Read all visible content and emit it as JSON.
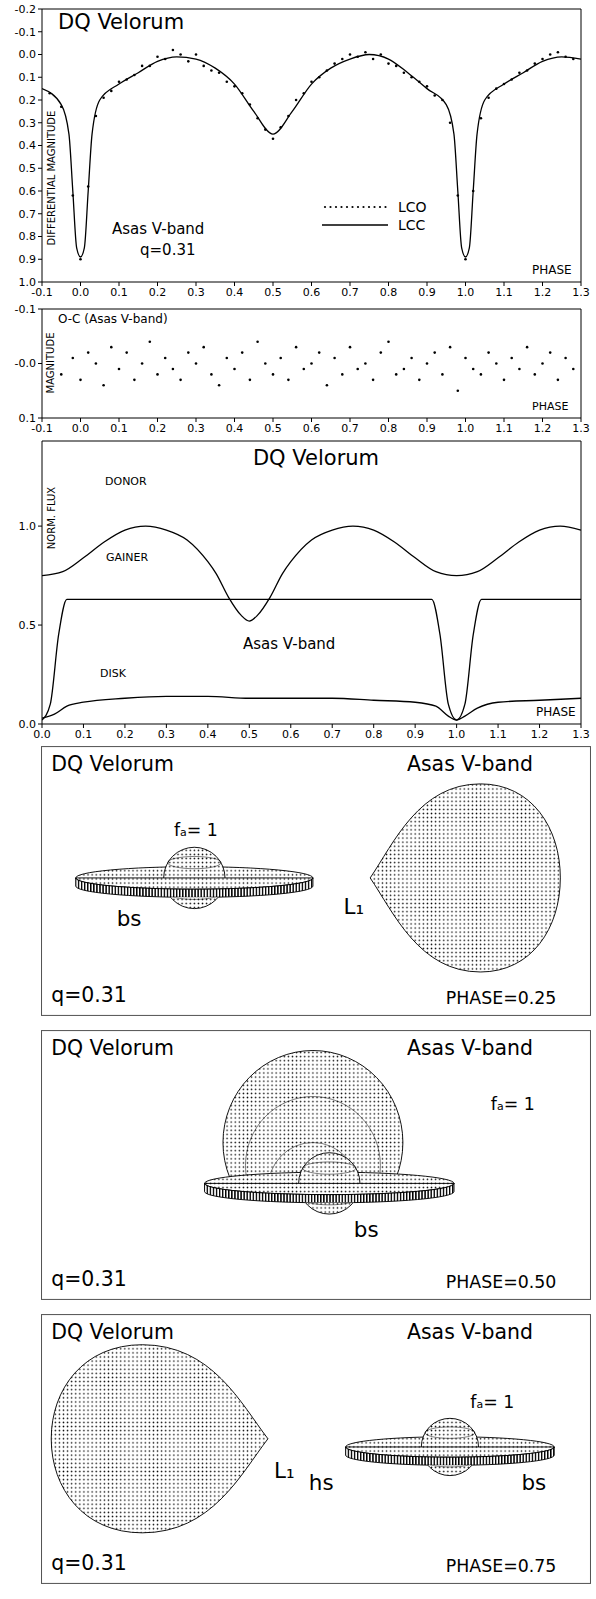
{
  "chart_data": [
    {
      "type": "line",
      "title": "DQ Velorum",
      "annotations": [
        "Asas V-band",
        "q=0.31"
      ],
      "y_label": "DIFFERENTIAL MAGNITUDE",
      "x_label": "PHASE",
      "xlim": [
        -0.1,
        1.3
      ],
      "xticks": [
        -0.1,
        {
          "value": 0,
          "label": "0.0"
        },
        0.1,
        0.2,
        0.3,
        0.4,
        0.5,
        0.6,
        0.7,
        0.8,
        0.9,
        {
          "value": 1,
          "label": "1.0"
        },
        1.1,
        1.2,
        1.3
      ],
      "ylim": [
        1,
        -0.2
      ],
      "yticks": [
        -0.2,
        -0.1,
        {
          "value": 0,
          "label": "0.0"
        },
        0.1,
        0.2,
        0.3,
        0.4,
        0.5,
        0.6,
        0.7,
        0.8,
        0.9,
        {
          "value": 1,
          "label": "1.0"
        }
      ],
      "legend": "bottom",
      "series": [
        {
          "name": "LCO",
          "type": "scatter",
          "marker": "dot",
          "color": "#000000",
          "x": [
            -0.08,
            -0.05,
            -0.02,
            0,
            0.02,
            0.04,
            0.06,
            0.08,
            0.1,
            0.12,
            0.14,
            0.16,
            0.18,
            0.2,
            0.22,
            0.24,
            0.26,
            0.28,
            0.3,
            0.32,
            0.34,
            0.36,
            0.38,
            0.4,
            0.42,
            0.44,
            0.46,
            0.48,
            0.5,
            0.52,
            0.54,
            0.56,
            0.58,
            0.6,
            0.62,
            0.64,
            0.66,
            0.68,
            0.7,
            0.72,
            0.74,
            0.76,
            0.78,
            0.8,
            0.82,
            0.84,
            0.86,
            0.88,
            0.9,
            0.92,
            0.94,
            0.96,
            0.98,
            1,
            1.02,
            1.04,
            1.06,
            1.08,
            1.1,
            1.12,
            1.14,
            1.16,
            1.18,
            1.2,
            1.22,
            1.24,
            1.26,
            1.28
          ],
          "values": [
            0.17,
            0.23,
            0.62,
            0.9,
            0.58,
            0.27,
            0.19,
            0.16,
            0.12,
            0.11,
            0.09,
            0.05,
            0.05,
            0.01,
            0.02,
            -0.02,
            0.0,
            0.03,
            0.0,
            0.05,
            0.07,
            0.08,
            0.12,
            0.14,
            0.17,
            0.22,
            0.28,
            0.33,
            0.37,
            0.32,
            0.27,
            0.2,
            0.17,
            0.12,
            0.1,
            0.07,
            0.04,
            0.02,
            0.0,
            0.01,
            -0.01,
            0.02,
            0.0,
            0.04,
            0.05,
            0.08,
            0.1,
            0.12,
            0.14,
            0.18,
            0.2,
            0.3,
            0.62,
            0.9,
            0.6,
            0.28,
            0.19,
            0.15,
            0.13,
            0.11,
            0.08,
            0.07,
            0.04,
            0.02,
            0.0,
            -0.01,
            0.01,
            0.02
          ]
        },
        {
          "name": "LCC",
          "type": "line",
          "line_style": "solid",
          "color": "#000000",
          "x": [
            -0.1,
            -0.05,
            -0.03,
            -0.02,
            -0.01,
            0,
            0.01,
            0.02,
            0.03,
            0.05,
            0.1,
            0.15,
            0.2,
            0.25,
            0.3,
            0.35,
            0.4,
            0.45,
            0.5,
            0.55,
            0.6,
            0.65,
            0.7,
            0.75,
            0.8,
            0.85,
            0.9,
            0.95,
            0.97,
            0.98,
            0.99,
            1,
            1.01,
            1.02,
            1.03,
            1.05,
            1.1,
            1.15,
            1.2,
            1.25,
            1.3
          ],
          "values": [
            0.15,
            0.22,
            0.35,
            0.6,
            0.85,
            0.89,
            0.85,
            0.6,
            0.35,
            0.2,
            0.13,
            0.08,
            0.03,
            0.01,
            0.02,
            0.06,
            0.13,
            0.25,
            0.35,
            0.25,
            0.13,
            0.06,
            0.02,
            0.0,
            0.02,
            0.08,
            0.15,
            0.22,
            0.35,
            0.6,
            0.85,
            0.89,
            0.85,
            0.6,
            0.35,
            0.2,
            0.13,
            0.08,
            0.03,
            0.01,
            0.02
          ]
        }
      ]
    },
    {
      "type": "scatter",
      "title": "O-C (Asas V-band)",
      "y_label": "MAGNITUDE",
      "x_label": "PHASE",
      "xlim": [
        -0.1,
        1.3
      ],
      "xticks": [
        -0.1,
        {
          "value": 0,
          "label": "0.0"
        },
        0.1,
        0.2,
        0.3,
        0.4,
        0.5,
        0.6,
        0.7,
        0.8,
        0.9,
        {
          "value": 1,
          "label": "1.0"
        },
        1.1,
        1.2,
        1.3
      ],
      "ylim": [
        0.1,
        -0.1
      ],
      "yticks": [
        -0.1,
        {
          "value": 0,
          "label": "-0.0"
        },
        0.1
      ],
      "series": [
        {
          "type": "scatter",
          "marker": "dot",
          "color": "#000000",
          "x": [
            -0.05,
            -0.02,
            0,
            0.02,
            0.04,
            0.06,
            0.08,
            0.1,
            0.12,
            0.14,
            0.16,
            0.18,
            0.2,
            0.22,
            0.24,
            0.26,
            0.28,
            0.3,
            0.32,
            0.34,
            0.36,
            0.38,
            0.4,
            0.42,
            0.44,
            0.46,
            0.48,
            0.5,
            0.52,
            0.54,
            0.56,
            0.58,
            0.6,
            0.62,
            0.64,
            0.66,
            0.68,
            0.7,
            0.72,
            0.74,
            0.76,
            0.78,
            0.8,
            0.82,
            0.84,
            0.86,
            0.88,
            0.9,
            0.92,
            0.94,
            0.96,
            0.98,
            1,
            1.02,
            1.04,
            1.06,
            1.08,
            1.1,
            1.12,
            1.14,
            1.16,
            1.18,
            1.2,
            1.22,
            1.24,
            1.26,
            1.28
          ],
          "values": [
            0.02,
            -0.01,
            0.03,
            -0.02,
            0.0,
            0.04,
            -0.03,
            0.01,
            -0.02,
            0.03,
            0.0,
            -0.04,
            0.02,
            -0.01,
            0.01,
            0.03,
            -0.02,
            0.0,
            -0.03,
            0.02,
            0.04,
            -0.01,
            0.01,
            -0.02,
            0.03,
            -0.04,
            0.0,
            0.02,
            -0.01,
            0.03,
            -0.03,
            0.01,
            0.0,
            -0.02,
            0.04,
            -0.01,
            0.02,
            -0.03,
            0.01,
            0.0,
            0.03,
            -0.02,
            -0.04,
            0.02,
            0.01,
            -0.01,
            0.03,
            0.0,
            -0.02,
            0.02,
            -0.03,
            0.05,
            -0.01,
            0.01,
            0.02,
            -0.02,
            0.0,
            0.03,
            -0.01,
            0.01,
            -0.03,
            0.02,
            0.0,
            -0.02,
            0.03,
            -0.01,
            0.01
          ]
        }
      ]
    },
    {
      "type": "line",
      "title": "DQ Velorum",
      "annotations": [
        "Asas V-band"
      ],
      "y_label": "NORM. FLUX",
      "x_label": "PHASE",
      "xlim": [
        0,
        1.3
      ],
      "xticks": [
        {
          "value": 0,
          "label": "0.0"
        },
        0.1,
        0.2,
        0.3,
        0.4,
        0.5,
        0.6,
        0.7,
        0.8,
        0.9,
        {
          "value": 1,
          "label": "1.0"
        },
        1.1,
        1.2,
        1.3
      ],
      "ylim": [
        0,
        1.43
      ],
      "yticks": [
        {
          "value": 0,
          "label": "0.0"
        },
        0.5,
        {
          "value": 1,
          "label": "1.0"
        }
      ],
      "series": [
        {
          "name": "DONOR",
          "color": "#000000",
          "line_style": "solid",
          "x": [
            0,
            0.05,
            0.1,
            0.15,
            0.2,
            0.25,
            0.3,
            0.35,
            0.4,
            0.42,
            0.45,
            0.48,
            0.5,
            0.52,
            0.55,
            0.58,
            0.6,
            0.65,
            0.7,
            0.75,
            0.8,
            0.85,
            0.9,
            0.95,
            1,
            1.05,
            1.1,
            1.15,
            1.2,
            1.25,
            1.3
          ],
          "values": [
            0.75,
            0.77,
            0.84,
            0.92,
            0.98,
            1.0,
            0.98,
            0.93,
            0.82,
            0.76,
            0.64,
            0.55,
            0.52,
            0.55,
            0.64,
            0.76,
            0.82,
            0.93,
            0.98,
            1.0,
            0.98,
            0.92,
            0.84,
            0.77,
            0.75,
            0.77,
            0.84,
            0.92,
            0.98,
            1.0,
            0.98
          ]
        },
        {
          "name": "GAINER",
          "color": "#000000",
          "line_style": "solid",
          "x": [
            0,
            0.02,
            0.04,
            0.06,
            0.94,
            0.96,
            0.98,
            1,
            1.02,
            1.04,
            1.06,
            1.3
          ],
          "values": [
            0.02,
            0.1,
            0.45,
            0.63,
            0.63,
            0.45,
            0.1,
            0.02,
            0.1,
            0.45,
            0.63,
            0.63
          ]
        },
        {
          "name": "DISK",
          "color": "#000000",
          "line_style": "solid",
          "x": [
            0,
            0.03,
            0.06,
            0.1,
            0.2,
            0.3,
            0.4,
            0.5,
            0.6,
            0.7,
            0.8,
            0.9,
            0.95,
            0.98,
            1,
            1.02,
            1.05,
            1.1,
            1.2,
            1.3
          ],
          "values": [
            0.03,
            0.05,
            0.09,
            0.11,
            0.13,
            0.14,
            0.14,
            0.13,
            0.13,
            0.13,
            0.12,
            0.11,
            0.09,
            0.04,
            0.02,
            0.04,
            0.08,
            0.11,
            0.12,
            0.13
          ]
        }
      ]
    }
  ],
  "diagrams": [
    {
      "title": "DQ Velorum",
      "band": "Asas V-band",
      "q_label": "q=0.31",
      "phase_label": "PHASE=0.25",
      "gainer_label": "fₐ= 1",
      "bs_label": "bs",
      "l1_label": "L₁"
    },
    {
      "title": "DQ Velorum",
      "band": "Asas V-band",
      "q_label": "q=0.31",
      "phase_label": "PHASE=0.50",
      "gainer_label": "fₐ= 1",
      "bs_label": "bs"
    },
    {
      "title": "DQ Velorum",
      "band": "Asas V-band",
      "q_label": "q=0.31",
      "phase_label": "PHASE=0.75",
      "gainer_label": "fₐ= 1",
      "bs_label": "bs",
      "l1_label": "L₁",
      "hs_label": "hs"
    }
  ]
}
